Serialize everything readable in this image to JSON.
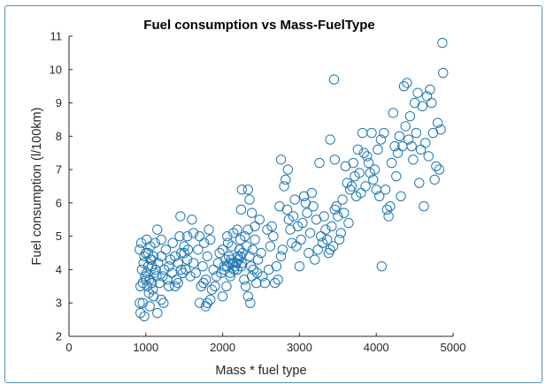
{
  "top_snippet": "",
  "chart_data": {
    "type": "scatter",
    "title": "Fuel consumption vs Mass-FuelType",
    "xlabel": "Mass * fuel type",
    "ylabel": "Fuel consumption (l/100km)",
    "xlim": [
      0,
      5000
    ],
    "ylim": [
      2,
      11
    ],
    "xticks": [
      0,
      1000,
      2000,
      3000,
      4000,
      5000
    ],
    "yticks": [
      2,
      3,
      4,
      5,
      6,
      7,
      8,
      9,
      10,
      11
    ],
    "marker": "open-circle",
    "color": "#1f77b4",
    "grid": false,
    "series": [
      {
        "points": [
          [
            930,
            2.7
          ],
          [
            980,
            2.6
          ],
          [
            920,
            3.0
          ],
          [
            960,
            3.0
          ],
          [
            1050,
            2.9
          ],
          [
            1100,
            3.2
          ],
          [
            1150,
            2.7
          ],
          [
            1200,
            3.1
          ],
          [
            1230,
            3.0
          ],
          [
            1300,
            3.5
          ],
          [
            930,
            3.5
          ],
          [
            960,
            3.6
          ],
          [
            990,
            3.8
          ],
          [
            1010,
            3.9
          ],
          [
            1030,
            4.1
          ],
          [
            1050,
            3.7
          ],
          [
            1070,
            4.3
          ],
          [
            1090,
            3.4
          ],
          [
            1110,
            3.9
          ],
          [
            1130,
            4.0
          ],
          [
            1160,
            4.2
          ],
          [
            1180,
            3.6
          ],
          [
            1200,
            4.4
          ],
          [
            1220,
            3.8
          ],
          [
            1240,
            4.0
          ],
          [
            1260,
            4.6
          ],
          [
            1280,
            3.7
          ],
          [
            1300,
            4.1
          ],
          [
            1320,
            4.3
          ],
          [
            1340,
            3.9
          ],
          [
            950,
            4.0
          ],
          [
            970,
            4.2
          ],
          [
            1000,
            4.5
          ],
          [
            1020,
            3.5
          ],
          [
            1040,
            3.3
          ],
          [
            1060,
            4.7
          ],
          [
            1080,
            3.6
          ],
          [
            1100,
            4.4
          ],
          [
            1120,
            4.8
          ],
          [
            1140,
            3.8
          ],
          [
            920,
            4.6
          ],
          [
            940,
            4.8
          ],
          [
            980,
            4.4
          ],
          [
            1000,
            3.7
          ],
          [
            1010,
            4.9
          ],
          [
            1030,
            4.5
          ],
          [
            1060,
            4.3
          ],
          [
            1080,
            4.1
          ],
          [
            1150,
            5.2
          ],
          [
            1200,
            4.9
          ],
          [
            1350,
            4.8
          ],
          [
            1380,
            4.4
          ],
          [
            1400,
            3.7
          ],
          [
            1420,
            4.2
          ],
          [
            1440,
            5.0
          ],
          [
            1460,
            4.5
          ],
          [
            1480,
            3.9
          ],
          [
            1500,
            4.7
          ],
          [
            1520,
            4.0
          ],
          [
            1540,
            4.3
          ],
          [
            1380,
            3.5
          ],
          [
            1420,
            3.6
          ],
          [
            1460,
            4.0
          ],
          [
            1500,
            4.5
          ],
          [
            1540,
            5.0
          ],
          [
            1580,
            3.8
          ],
          [
            1600,
            5.5
          ],
          [
            1620,
            4.2
          ],
          [
            1650,
            3.9
          ],
          [
            1680,
            4.6
          ],
          [
            1700,
            3.0
          ],
          [
            1720,
            3.5
          ],
          [
            1740,
            4.1
          ],
          [
            1760,
            4.8
          ],
          [
            1780,
            3.7
          ],
          [
            1800,
            4.4
          ],
          [
            1820,
            5.2
          ],
          [
            1840,
            4.9
          ],
          [
            1860,
            3.4
          ],
          [
            1880,
            4.0
          ],
          [
            1450,
            5.6
          ],
          [
            1550,
            4.6
          ],
          [
            1620,
            5.1
          ],
          [
            1700,
            5.0
          ],
          [
            1750,
            3.6
          ],
          [
            1780,
            2.9
          ],
          [
            1800,
            3.0
          ],
          [
            1840,
            3.1
          ],
          [
            1900,
            3.5
          ],
          [
            1920,
            3.8
          ],
          [
            1940,
            4.2
          ],
          [
            1960,
            4.5
          ],
          [
            1980,
            3.9
          ],
          [
            2000,
            4.6
          ],
          [
            2020,
            4.1
          ],
          [
            2040,
            4.3
          ],
          [
            2060,
            5.0
          ],
          [
            2080,
            4.4
          ],
          [
            2100,
            3.9
          ],
          [
            2120,
            4.7
          ],
          [
            2000,
            3.2
          ],
          [
            2050,
            3.5
          ],
          [
            2100,
            3.8
          ],
          [
            2150,
            4.0
          ],
          [
            2180,
            4.2
          ],
          [
            2200,
            4.4
          ],
          [
            2220,
            4.6
          ],
          [
            2240,
            4.1
          ],
          [
            2260,
            4.5
          ],
          [
            2280,
            3.7
          ],
          [
            2020,
            4.0
          ],
          [
            2060,
            4.1
          ],
          [
            2090,
            4.2
          ],
          [
            2110,
            4.3
          ],
          [
            2130,
            4.2
          ],
          [
            2160,
            4.1
          ],
          [
            2190,
            4.0
          ],
          [
            2210,
            4.3
          ],
          [
            2230,
            4.4
          ],
          [
            2250,
            4.2
          ],
          [
            2070,
            4.8
          ],
          [
            2140,
            5.1
          ],
          [
            2190,
            5.2
          ],
          [
            2230,
            4.9
          ],
          [
            2290,
            5.0
          ],
          [
            2310,
            4.7
          ],
          [
            2330,
            5.2
          ],
          [
            2350,
            4.4
          ],
          [
            2370,
            4.1
          ],
          [
            2390,
            4.6
          ],
          [
            2300,
            3.5
          ],
          [
            2330,
            3.2
          ],
          [
            2360,
            3.0
          ],
          [
            2380,
            3.8
          ],
          [
            2400,
            4.0
          ],
          [
            2420,
            4.9
          ],
          [
            2440,
            3.6
          ],
          [
            2460,
            4.3
          ],
          [
            2480,
            5.5
          ],
          [
            2500,
            4.5
          ],
          [
            2240,
            5.8
          ],
          [
            2250,
            6.4
          ],
          [
            2330,
            6.4
          ],
          [
            2350,
            6.1
          ],
          [
            2380,
            5.7
          ],
          [
            2420,
            5.3
          ],
          [
            2450,
            3.9
          ],
          [
            2520,
            3.8
          ],
          [
            2550,
            3.6
          ],
          [
            2580,
            5.2
          ],
          [
            2600,
            4.0
          ],
          [
            2620,
            4.7
          ],
          [
            2640,
            5.3
          ],
          [
            2660,
            5.0
          ],
          [
            2680,
            3.6
          ],
          [
            2700,
            4.1
          ],
          [
            2720,
            3.7
          ],
          [
            2740,
            5.9
          ],
          [
            2760,
            4.4
          ],
          [
            2780,
            4.6
          ],
          [
            2800,
            6.5
          ],
          [
            2820,
            6.7
          ],
          [
            2840,
            5.8
          ],
          [
            2860,
            5.5
          ],
          [
            2880,
            5.2
          ],
          [
            2900,
            4.8
          ],
          [
            2920,
            5.6
          ],
          [
            2940,
            6.1
          ],
          [
            2960,
            4.7
          ],
          [
            2980,
            5.3
          ],
          [
            2760,
            7.3
          ],
          [
            2850,
            7.0
          ],
          [
            3000,
            4.1
          ],
          [
            3020,
            4.9
          ],
          [
            3040,
            5.4
          ],
          [
            3060,
            6.2
          ],
          [
            3080,
            6.0
          ],
          [
            3100,
            5.7
          ],
          [
            3120,
            4.5
          ],
          [
            3140,
            5.1
          ],
          [
            3160,
            6.3
          ],
          [
            3180,
            5.9
          ],
          [
            3200,
            4.3
          ],
          [
            3220,
            5.5
          ],
          [
            3240,
            4.6
          ],
          [
            3260,
            7.2
          ],
          [
            3280,
            5.0
          ],
          [
            3300,
            4.8
          ],
          [
            3320,
            5.6
          ],
          [
            3340,
            5.2
          ],
          [
            3360,
            4.9
          ],
          [
            3380,
            4.5
          ],
          [
            3400,
            4.6
          ],
          [
            3420,
            5.3
          ],
          [
            3440,
            4.7
          ],
          [
            3460,
            5.8
          ],
          [
            3480,
            5.9
          ],
          [
            3500,
            5.6
          ],
          [
            3520,
            4.9
          ],
          [
            3540,
            5.1
          ],
          [
            3400,
            7.9
          ],
          [
            3450,
            9.7
          ],
          [
            3460,
            7.3
          ],
          [
            3560,
            6.1
          ],
          [
            3580,
            5.7
          ],
          [
            3600,
            7.1
          ],
          [
            3620,
            6.6
          ],
          [
            3640,
            5.4
          ],
          [
            3660,
            6.4
          ],
          [
            3680,
            6.5
          ],
          [
            3700,
            7.2
          ],
          [
            3720,
            6.8
          ],
          [
            3740,
            6.2
          ],
          [
            3760,
            7.6
          ],
          [
            3780,
            6.9
          ],
          [
            3800,
            6.3
          ],
          [
            3820,
            8.1
          ],
          [
            3840,
            7.5
          ],
          [
            3860,
            6.5
          ],
          [
            3880,
            7.4
          ],
          [
            3900,
            7.2
          ],
          [
            3920,
            6.9
          ],
          [
            3940,
            8.1
          ],
          [
            3960,
            6.7
          ],
          [
            3980,
            7.0
          ],
          [
            4000,
            6.4
          ],
          [
            4020,
            7.6
          ],
          [
            4040,
            6.2
          ],
          [
            4060,
            7.9
          ],
          [
            4070,
            4.1
          ],
          [
            4100,
            8.1
          ],
          [
            4120,
            6.4
          ],
          [
            4140,
            5.8
          ],
          [
            4160,
            5.6
          ],
          [
            4180,
            5.9
          ],
          [
            4200,
            7.2
          ],
          [
            4220,
            8.7
          ],
          [
            4240,
            7.7
          ],
          [
            4260,
            6.8
          ],
          [
            4280,
            7.5
          ],
          [
            4300,
            8.0
          ],
          [
            4320,
            6.2
          ],
          [
            4340,
            7.7
          ],
          [
            4360,
            9.5
          ],
          [
            4380,
            8.3
          ],
          [
            4400,
            9.6
          ],
          [
            4420,
            7.9
          ],
          [
            4440,
            8.6
          ],
          [
            4460,
            7.7
          ],
          [
            4480,
            7.3
          ],
          [
            4500,
            9.0
          ],
          [
            4520,
            8.1
          ],
          [
            4540,
            9.3
          ],
          [
            4560,
            6.6
          ],
          [
            4580,
            7.6
          ],
          [
            4600,
            8.9
          ],
          [
            4620,
            5.9
          ],
          [
            4640,
            7.8
          ],
          [
            4660,
            9.2
          ],
          [
            4680,
            7.4
          ],
          [
            4700,
            9.4
          ],
          [
            4720,
            9.0
          ],
          [
            4740,
            8.1
          ],
          [
            4760,
            6.7
          ],
          [
            4780,
            7.1
          ],
          [
            4800,
            8.4
          ],
          [
            4820,
            7.0
          ],
          [
            4840,
            8.2
          ],
          [
            4860,
            10.8
          ],
          [
            4870,
            9.9
          ]
        ]
      }
    ]
  }
}
